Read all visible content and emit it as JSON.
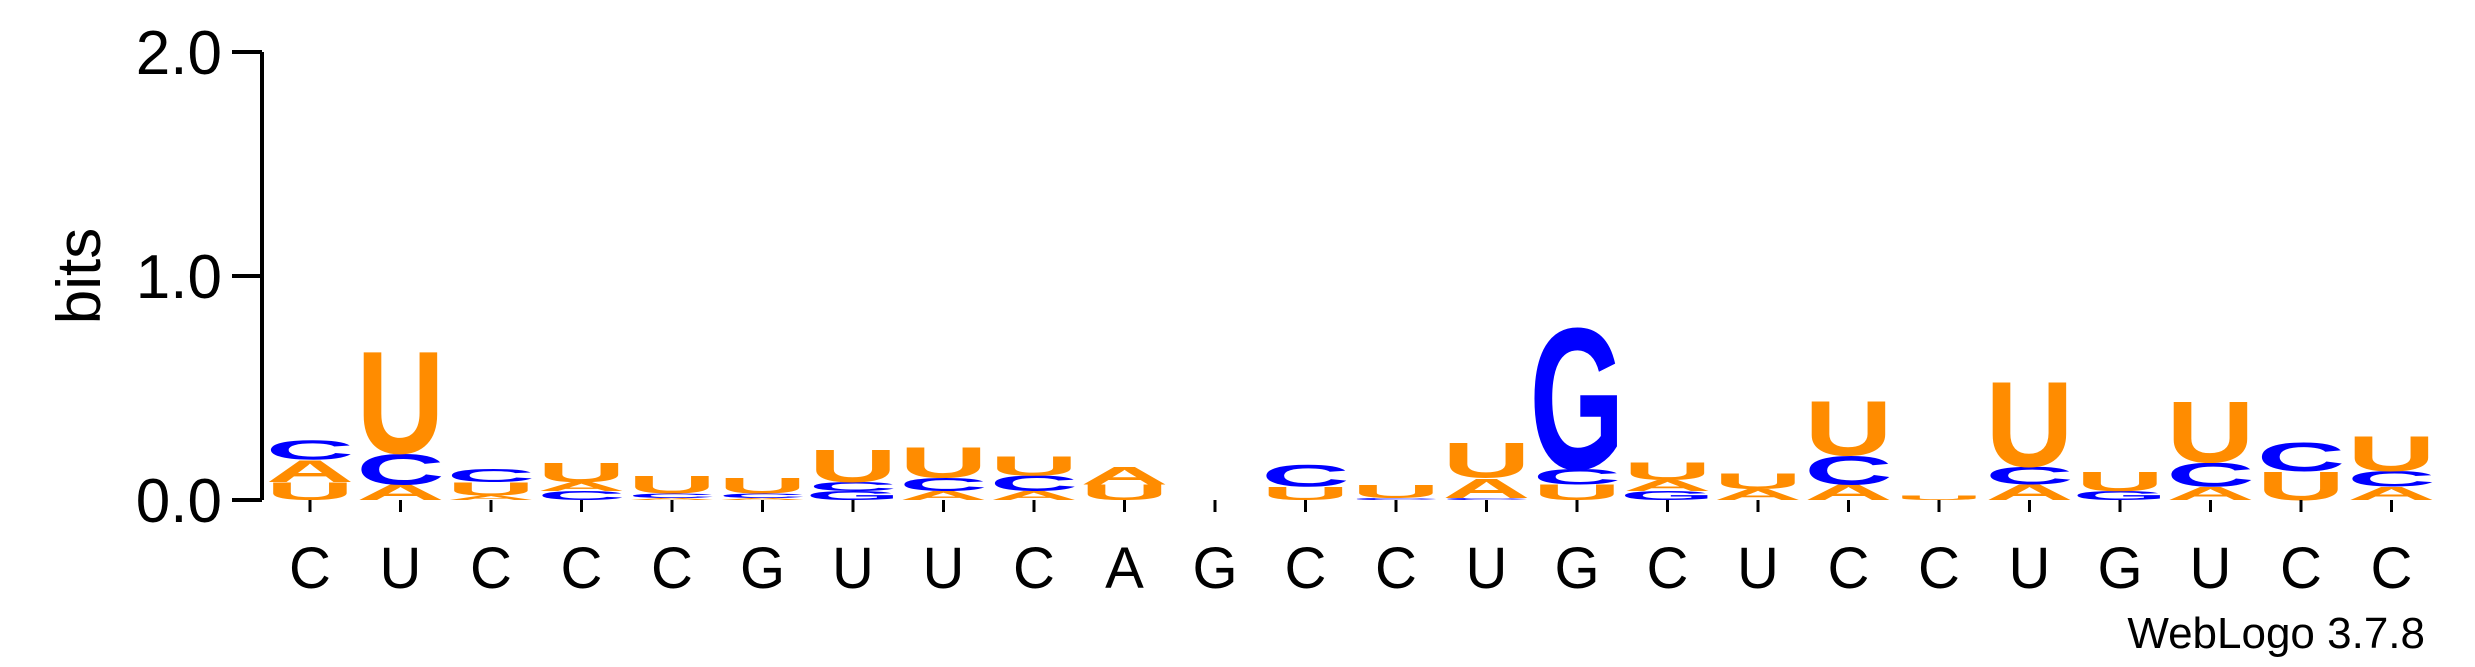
{
  "chart_data": {
    "type": "sequence-logo",
    "title": "",
    "ylabel": "bits",
    "ylim": [
      0,
      2.0
    ],
    "yticks": [
      "0.0",
      "1.0",
      "2.0"
    ],
    "xlabels": [
      "C",
      "U",
      "C",
      "C",
      "C",
      "G",
      "U",
      "U",
      "C",
      "A",
      "G",
      "C",
      "C",
      "U",
      "G",
      "C",
      "U",
      "C",
      "C",
      "U",
      "G",
      "U",
      "C",
      "C"
    ],
    "colors": {
      "A": "#ff8c00",
      "U": "#ff8c00",
      "C": "#0000ff",
      "G": "#0000ff"
    },
    "stacks": [
      [
        [
          "U",
          0.08
        ],
        [
          "A",
          0.1
        ],
        [
          "C",
          0.09
        ]
      ],
      [
        [
          "A",
          0.07
        ],
        [
          "C",
          0.14
        ],
        [
          "U",
          0.47
        ]
      ],
      [
        [
          "A",
          0.02
        ],
        [
          "U",
          0.06
        ],
        [
          "C",
          0.06
        ]
      ],
      [
        [
          "C",
          0.04
        ],
        [
          "A",
          0.04
        ],
        [
          "U",
          0.09
        ]
      ],
      [
        [
          "A",
          0.01
        ],
        [
          "C",
          0.02
        ],
        [
          "U",
          0.08
        ]
      ],
      [
        [
          "A",
          0.01
        ],
        [
          "C",
          0.02
        ],
        [
          "U",
          0.07
        ]
      ],
      [
        [
          "G",
          0.04
        ],
        [
          "C",
          0.04
        ],
        [
          "U",
          0.15
        ]
      ],
      [
        [
          "A",
          0.04
        ],
        [
          "C",
          0.06
        ],
        [
          "U",
          0.14
        ]
      ],
      [
        [
          "A",
          0.04
        ],
        [
          "C",
          0.07
        ],
        [
          "U",
          0.09
        ]
      ],
      [
        [
          "U",
          0.07
        ],
        [
          "A",
          0.08
        ]
      ],
      [],
      [
        [
          "U",
          0.06
        ],
        [
          "C",
          0.1
        ]
      ],
      [
        [
          "C",
          0.01
        ],
        [
          "U",
          0.06
        ]
      ],
      [
        [
          "C",
          0.01
        ],
        [
          "A",
          0.09
        ],
        [
          "U",
          0.16
        ]
      ],
      [
        [
          "U",
          0.07
        ],
        [
          "C",
          0.07
        ],
        [
          "G",
          0.65
        ]
      ],
      [
        [
          "G",
          0.04
        ],
        [
          "A",
          0.05
        ],
        [
          "U",
          0.08
        ]
      ],
      [
        [
          "A",
          0.05
        ],
        [
          "U",
          0.07
        ]
      ],
      [
        [
          "A",
          0.07
        ],
        [
          "C",
          0.13
        ],
        [
          "U",
          0.25
        ]
      ],
      [
        [
          "U",
          0.02
        ]
      ],
      [
        [
          "A",
          0.07
        ],
        [
          "C",
          0.08
        ],
        [
          "U",
          0.39
        ]
      ],
      [
        [
          "G",
          0.04
        ],
        [
          "U",
          0.09
        ]
      ],
      [
        [
          "A",
          0.06
        ],
        [
          "C",
          0.11
        ],
        [
          "U",
          0.28
        ]
      ],
      [
        [
          "U",
          0.13
        ],
        [
          "C",
          0.13
        ]
      ],
      [
        [
          "A",
          0.06
        ],
        [
          "C",
          0.07
        ],
        [
          "U",
          0.16
        ]
      ]
    ],
    "credit": "WebLogo 3.7.8"
  }
}
